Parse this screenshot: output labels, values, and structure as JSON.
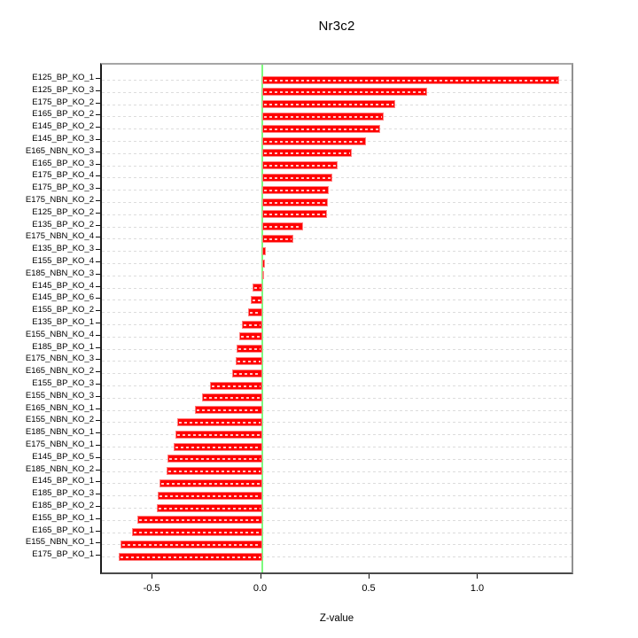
{
  "chart_data": {
    "type": "bar",
    "orientation": "horizontal",
    "title": "Nr3c2",
    "xlabel": "Z-value",
    "ylabel": "",
    "xlim": [
      -0.737,
      1.443
    ],
    "grid": true,
    "x_ticks": [
      {
        "label": "-0.5",
        "value": -0.5
      },
      {
        "label": "0.0",
        "value": 0.0
      },
      {
        "label": "0.5",
        "value": 0.5
      },
      {
        "label": "1.0",
        "value": 1.0
      }
    ],
    "categories": [
      "E125_BP_KO_1",
      "E125_BP_KO_3",
      "E175_BP_KO_2",
      "E165_BP_KO_2",
      "E145_BP_KO_2",
      "E145_BP_KO_3",
      "E165_NBN_KO_3",
      "E165_BP_KO_3",
      "E175_BP_KO_4",
      "E175_BP_KO_3",
      "E175_NBN_KO_2",
      "E125_BP_KO_2",
      "E135_BP_KO_2",
      "E175_NBN_KO_4",
      "E135_BP_KO_3",
      "E155_BP_KO_4",
      "E185_NBN_KO_3",
      "E145_BP_KO_4",
      "E145_BP_KO_6",
      "E155_BP_KO_2",
      "E135_BP_KO_1",
      "E155_NBN_KO_4",
      "E185_BP_KO_1",
      "E175_NBN_KO_3",
      "E165_NBN_KO_2",
      "E155_BP_KO_3",
      "E155_NBN_KO_3",
      "E165_NBN_KO_1",
      "E155_NBN_KO_2",
      "E185_NBN_KO_1",
      "E175_NBN_KO_1",
      "E145_BP_KO_5",
      "E185_NBN_KO_2",
      "E145_BP_KO_1",
      "E185_BP_KO_3",
      "E185_BP_KO_2",
      "E155_BP_KO_1",
      "E165_BP_KO_1",
      "E155_NBN_KO_1",
      "E175_BP_KO_1"
    ],
    "values": [
      1.37,
      0.76,
      0.615,
      0.56,
      0.545,
      0.48,
      0.415,
      0.35,
      0.325,
      0.31,
      0.305,
      0.3,
      0.19,
      0.145,
      0.02,
      0.015,
      0.01,
      -0.045,
      -0.05,
      -0.065,
      -0.09,
      -0.105,
      -0.115,
      -0.12,
      -0.135,
      -0.24,
      -0.275,
      -0.31,
      -0.39,
      -0.4,
      -0.405,
      -0.435,
      -0.44,
      -0.47,
      -0.48,
      -0.485,
      -0.575,
      -0.6,
      -0.65,
      -0.66
    ],
    "colors": {
      "bar_fill": "#ff0000",
      "bar_edge": "#ff8080",
      "zero_line": "#7dfa7d",
      "gridline": "#dcdcdc",
      "axis_dark": "#1b1b1b",
      "axis_gray": "#a6a6a6"
    }
  }
}
